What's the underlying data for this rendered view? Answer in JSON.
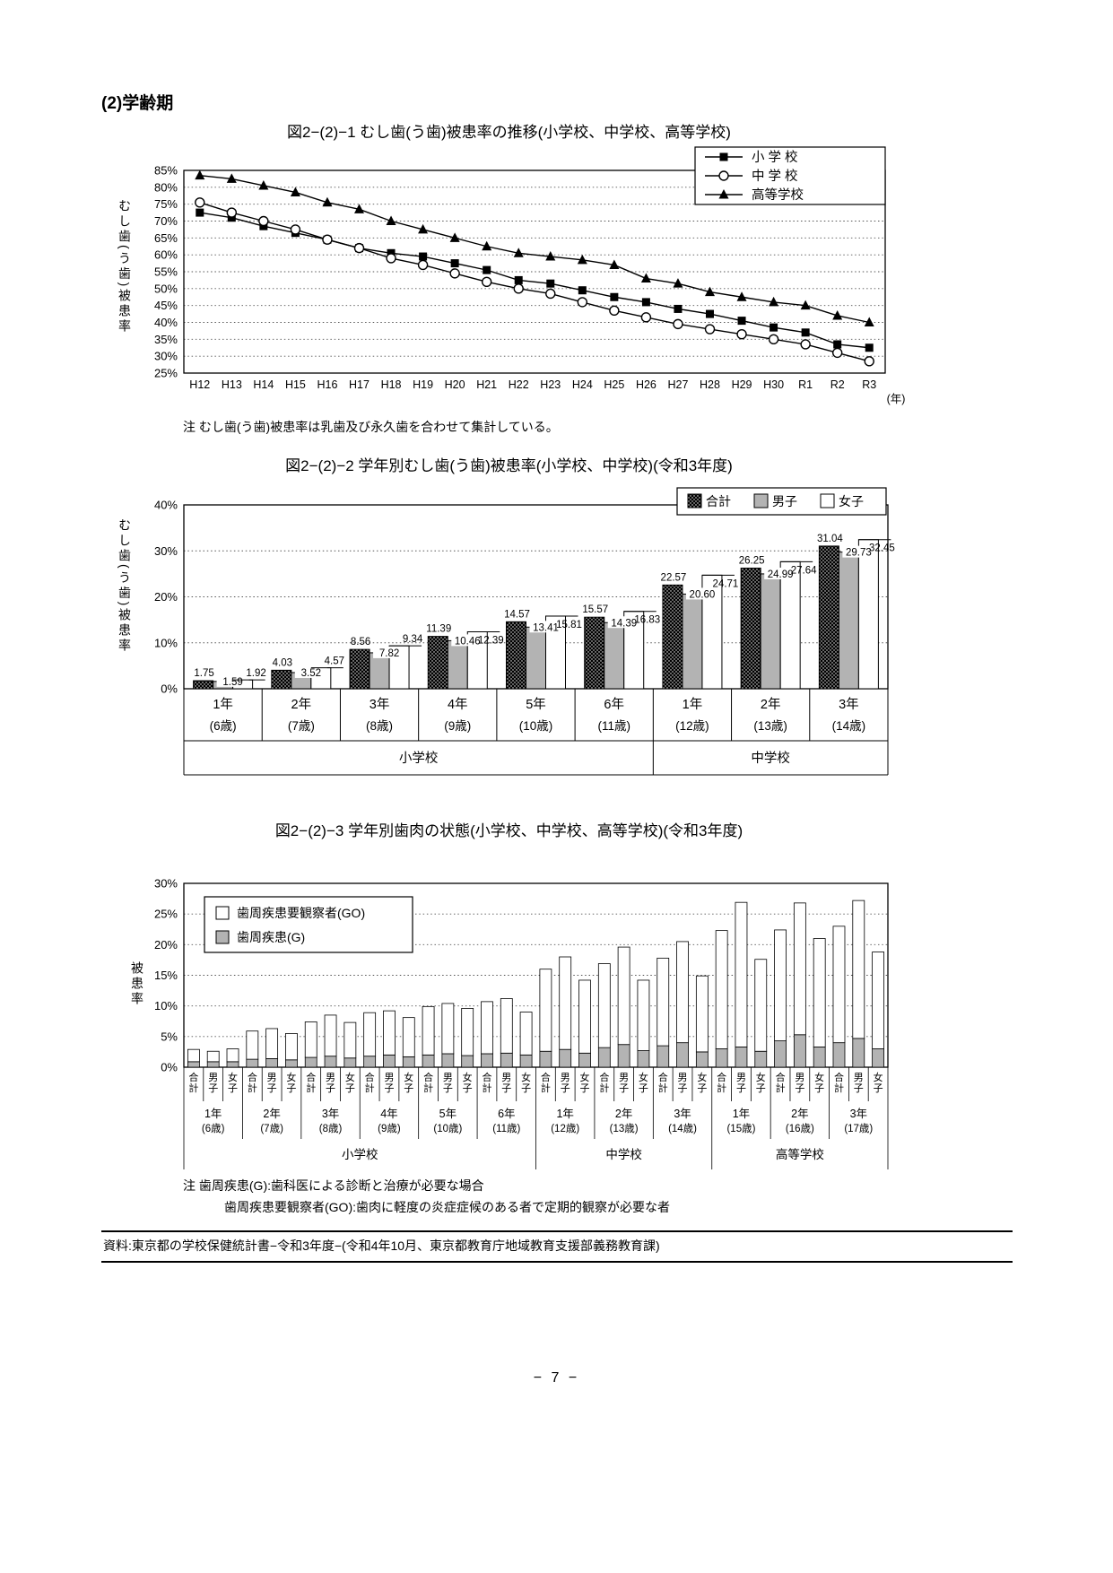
{
  "page": {
    "section_heading": "(2)学齢期",
    "page_number": "− 7 −",
    "source_line": "資料:東京都の学校保健統計書−令和3年度−(令和4年10月、東京都教育庁地域教育支援部義務教育課)"
  },
  "colors": {
    "line": "#000000",
    "bar_total": "#000000",
    "bar_male": "#b3b3b3",
    "bar_female": "#ffffff",
    "bar_G": "#b3b3b3",
    "bar_GO": "#ffffff"
  },
  "chart_data": [
    {
      "type": "line",
      "title": "図2−(2)−1 むし歯(う歯)被患率の推移(小学校、中学校、高等学校)",
      "ylabel": "むし歯(う歯)被患率",
      "xlabel_unit": "(年)",
      "note": "注 むし歯(う歯)被患率は乳歯及び永久歯を合わせて集計している。",
      "ylim": [
        25,
        85
      ],
      "ytick_step": 5,
      "grid": true,
      "legend_position": "top-right",
      "categories": [
        "H12",
        "H13",
        "H14",
        "H15",
        "H16",
        "H17",
        "H18",
        "H19",
        "H20",
        "H21",
        "H22",
        "H23",
        "H24",
        "H25",
        "H26",
        "H27",
        "H28",
        "H29",
        "H30",
        "R1",
        "R2",
        "R3"
      ],
      "series": [
        {
          "name": "小 学 校",
          "marker": "square",
          "values": [
            72.5,
            71,
            68.5,
            66.5,
            64.5,
            62,
            60.5,
            59.5,
            57.5,
            55.5,
            52.5,
            51.5,
            49.5,
            47.5,
            46,
            44,
            42.5,
            40.5,
            38.5,
            37,
            33.5,
            32.5
          ]
        },
        {
          "name": "中 学 校",
          "marker": "circle",
          "values": [
            75.5,
            72.5,
            70,
            67.5,
            64.5,
            62,
            59,
            57,
            54.5,
            52,
            50,
            48.5,
            46,
            43.5,
            41.5,
            39.5,
            38,
            36.5,
            35,
            33.5,
            31,
            28.5
          ]
        },
        {
          "name": "高等学校",
          "marker": "triangle",
          "values": [
            83.5,
            82.5,
            80.5,
            78.5,
            75.5,
            73.5,
            70,
            67.5,
            65,
            62.5,
            60.5,
            59.5,
            58.5,
            57,
            53,
            51.5,
            49,
            47.5,
            46,
            45,
            42,
            40
          ]
        }
      ]
    },
    {
      "type": "bar",
      "title": "図2−(2)−2 学年別むし歯(う歯)被患率(小学校、中学校)(令和3年度)",
      "ylabel": "むし歯(う歯)被患率",
      "ylim": [
        0,
        40
      ],
      "ytick_step": 10,
      "grid": true,
      "legend_position": "top-right",
      "series_names": [
        "合計",
        "男子",
        "女子"
      ],
      "groups": [
        {
          "grade": "1年",
          "age": "(6歳)",
          "values": [
            1.75,
            1.59,
            1.92
          ]
        },
        {
          "grade": "2年",
          "age": "(7歳)",
          "values": [
            4.03,
            3.52,
            4.57
          ]
        },
        {
          "grade": "3年",
          "age": "(8歳)",
          "values": [
            8.56,
            7.82,
            9.34
          ]
        },
        {
          "grade": "4年",
          "age": "(9歳)",
          "values": [
            11.39,
            10.46,
            12.39
          ]
        },
        {
          "grade": "5年",
          "age": "(10歳)",
          "values": [
            14.57,
            13.41,
            15.81
          ]
        },
        {
          "grade": "6年",
          "age": "(11歳)",
          "values": [
            15.57,
            14.39,
            16.83
          ]
        },
        {
          "grade": "1年",
          "age": "(12歳)",
          "values": [
            22.57,
            20.6,
            24.71
          ]
        },
        {
          "grade": "2年",
          "age": "(13歳)",
          "values": [
            26.25,
            24.99,
            27.64
          ]
        },
        {
          "grade": "3年",
          "age": "(14歳)",
          "values": [
            31.04,
            29.73,
            32.45
          ]
        }
      ],
      "schools": [
        {
          "name": "小学校",
          "span": 6
        },
        {
          "name": "中学校",
          "span": 3
        }
      ]
    },
    {
      "type": "stacked-bar",
      "title": "図2−(2)−3 学年別歯肉の状態(小学校、中学校、高等学校)(令和3年度)",
      "ylabel": "被患率",
      "ylim": [
        0,
        30
      ],
      "ytick_step": 5,
      "grid": true,
      "legend_position": "top-left",
      "legend": [
        "歯周疾患要観察者(GO)",
        "歯周疾患(G)"
      ],
      "bar_labels": [
        "合計",
        "男子",
        "女子"
      ],
      "notes": [
        "注 歯周疾患(G):歯科医による診断と治療が必要な場合",
        "歯周疾患要観察者(GO):歯肉に軽度の炎症症候のある者で定期的観察が必要な者"
      ],
      "groups": [
        {
          "grade": "1年",
          "age": "(6歳)",
          "G": [
            0.9,
            0.9,
            0.9
          ],
          "GO": [
            2.0,
            1.7,
            2.1
          ]
        },
        {
          "grade": "2年",
          "age": "(7歳)",
          "G": [
            1.3,
            1.4,
            1.2
          ],
          "GO": [
            4.6,
            4.9,
            4.3
          ]
        },
        {
          "grade": "3年",
          "age": "(8歳)",
          "G": [
            1.6,
            1.8,
            1.5
          ],
          "GO": [
            5.8,
            6.7,
            5.8
          ]
        },
        {
          "grade": "4年",
          "age": "(9歳)",
          "G": [
            1.8,
            2.0,
            1.7
          ],
          "GO": [
            7.1,
            7.2,
            6.4
          ]
        },
        {
          "grade": "5年",
          "age": "(10歳)",
          "G": [
            2.0,
            2.2,
            1.9
          ],
          "GO": [
            7.9,
            8.2,
            7.7
          ]
        },
        {
          "grade": "6年",
          "age": "(11歳)",
          "G": [
            2.2,
            2.3,
            2.0
          ],
          "GO": [
            8.5,
            8.9,
            7.0
          ]
        },
        {
          "grade": "1年",
          "age": "(12歳)",
          "G": [
            2.6,
            2.9,
            2.3
          ],
          "GO": [
            13.4,
            15.1,
            11.9
          ]
        },
        {
          "grade": "2年",
          "age": "(13歳)",
          "G": [
            3.2,
            3.7,
            2.7
          ],
          "GO": [
            13.7,
            15.9,
            11.5
          ]
        },
        {
          "grade": "3年",
          "age": "(14歳)",
          "G": [
            3.5,
            4.0,
            2.5
          ],
          "GO": [
            14.3,
            16.5,
            12.4
          ]
        },
        {
          "grade": "1年",
          "age": "(15歳)",
          "G": [
            3.0,
            3.3,
            2.6
          ],
          "GO": [
            19.3,
            23.6,
            15.0
          ]
        },
        {
          "grade": "2年",
          "age": "(16歳)",
          "G": [
            4.3,
            5.3,
            3.3
          ],
          "GO": [
            18.1,
            21.5,
            17.7
          ]
        },
        {
          "grade": "3年",
          "age": "(17歳)",
          "G": [
            4.0,
            4.7,
            3.0
          ],
          "GO": [
            19.0,
            22.5,
            15.8
          ]
        }
      ],
      "schools": [
        {
          "name": "小学校",
          "span": 6
        },
        {
          "name": "中学校",
          "span": 3
        },
        {
          "name": "高等学校",
          "span": 3
        }
      ]
    }
  ]
}
